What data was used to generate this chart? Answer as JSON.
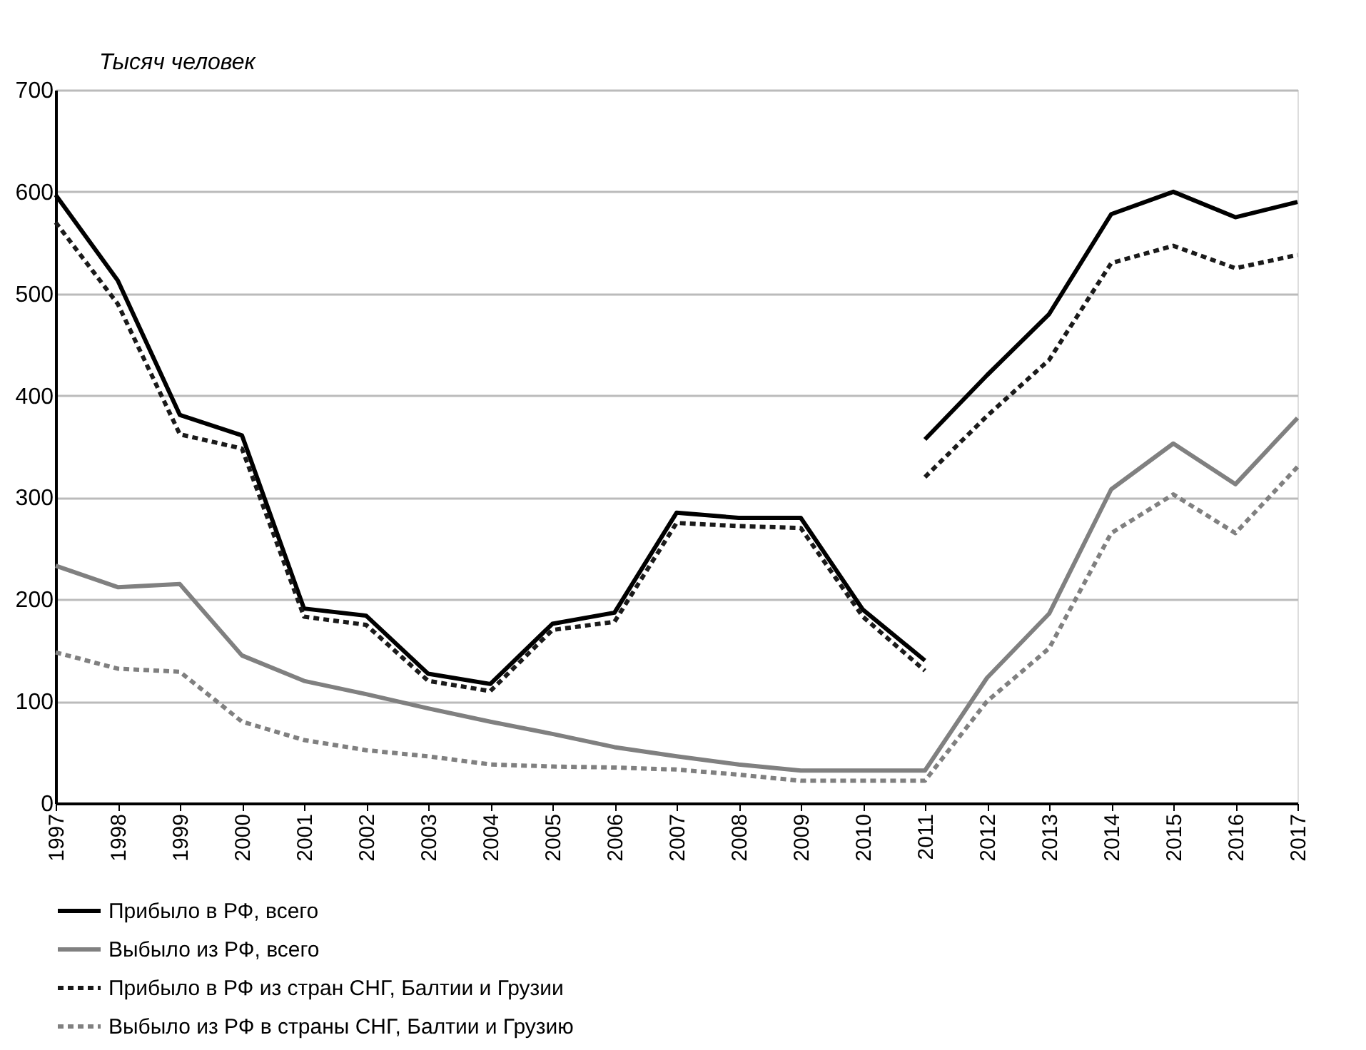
{
  "chart_data": {
    "type": "line",
    "ylabel": "Тысяч человек",
    "xlim": [
      1997,
      2017
    ],
    "xticks": [
      1997,
      1998,
      1999,
      2000,
      2001,
      2002,
      2003,
      2004,
      2005,
      2006,
      2007,
      2008,
      2009,
      2010,
      2011,
      2012,
      2013,
      2014,
      2015,
      2016,
      2017
    ],
    "ylim": [
      0,
      700
    ],
    "yticks": [
      0,
      100,
      200,
      300,
      400,
      500,
      600,
      700
    ],
    "grid": "y",
    "legend": "bottom",
    "marker": "none",
    "series": [
      {
        "name": "Прибыло  в РФ,  всего",
        "color": "#000000",
        "line_style": "solid",
        "x": [
          1997,
          1998,
          1999,
          2000,
          2001,
          2002,
          2003,
          2004,
          2005,
          2006,
          2007,
          2008,
          2009,
          2010,
          2011,
          2011,
          2012,
          2013,
          2014,
          2015,
          2016,
          2017
        ],
        "values": [
          597,
          513,
          381,
          361,
          191,
          184,
          127,
          117,
          176,
          187,
          285,
          280,
          280,
          190,
          140,
          357,
          420,
          480,
          578,
          600,
          575,
          590
        ]
      },
      {
        "name": "Выбыло  из РФ,  всего",
        "color": "#808080",
        "line_style": "solid",
        "x": [
          1997,
          1998,
          1999,
          2000,
          2001,
          2002,
          2003,
          2004,
          2005,
          2006,
          2007,
          2008,
          2009,
          2010,
          2011,
          2012,
          2013,
          2014,
          2015,
          2016,
          2017
        ],
        "values": [
          233,
          212,
          215,
          145,
          120,
          107,
          93,
          80,
          68,
          55,
          46,
          38,
          32,
          32,
          32,
          123,
          186,
          308,
          353,
          313,
          378
        ]
      },
      {
        "name": "Прибыло  в РФ  из стран СНГ,  Балтии и Грузии",
        "color": "#1a1a1a",
        "line_style": "dashed",
        "x": [
          1997,
          1998,
          1999,
          2000,
          2001,
          2002,
          2003,
          2004,
          2005,
          2006,
          2007,
          2008,
          2009,
          2010,
          2011,
          2011,
          2012,
          2013,
          2014,
          2015,
          2016,
          2017
        ],
        "values": [
          570,
          490,
          362,
          348,
          183,
          175,
          120,
          110,
          170,
          178,
          275,
          272,
          270,
          183,
          130,
          320,
          380,
          435,
          530,
          547,
          525,
          538
        ]
      },
      {
        "name": "Выбыло  из РФ  в страны СНГ,  Балтии и Грузию",
        "color": "#808080",
        "line_style": "dashed",
        "x": [
          1997,
          1998,
          1999,
          2000,
          2001,
          2002,
          2003,
          2004,
          2005,
          2006,
          2007,
          2008,
          2009,
          2010,
          2011,
          2012,
          2013,
          2014,
          2015,
          2016,
          2017
        ],
        "values": [
          148,
          132,
          129,
          80,
          62,
          52,
          46,
          38,
          36,
          35,
          33,
          28,
          22,
          22,
          22,
          100,
          152,
          265,
          303,
          265,
          330
        ]
      }
    ]
  }
}
